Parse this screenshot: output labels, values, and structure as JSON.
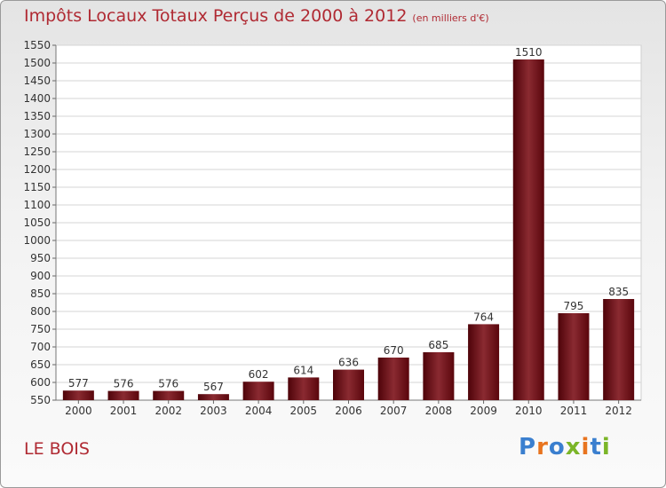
{
  "chart_data": {
    "type": "bar",
    "title": "Impôts Locaux Totaux Perçus de 2000 à 2012",
    "subtitle": "(en milliers d'€)",
    "categories": [
      "2000",
      "2001",
      "2002",
      "2003",
      "2004",
      "2005",
      "2006",
      "2007",
      "2008",
      "2009",
      "2010",
      "2011",
      "2012"
    ],
    "values": [
      577,
      576,
      576,
      567,
      602,
      614,
      636,
      670,
      685,
      764,
      1510,
      795,
      835
    ],
    "ylim": [
      550,
      1550
    ],
    "yticks": [
      550,
      600,
      650,
      700,
      750,
      800,
      850,
      900,
      950,
      1000,
      1050,
      1100,
      1150,
      1200,
      1250,
      1300,
      1350,
      1400,
      1450,
      1500,
      1550
    ],
    "xlabel": "",
    "ylabel": "",
    "grid": true,
    "bar_color": "#6e0f17"
  },
  "place_name": "LE BOIS",
  "logo": {
    "text": "Proxiti",
    "letters": [
      {
        "ch": "P",
        "color": "#3a7fcf"
      },
      {
        "ch": "r",
        "color": "#e8741f"
      },
      {
        "ch": "o",
        "color": "#3a7fcf"
      },
      {
        "ch": "x",
        "color": "#7bb528"
      },
      {
        "ch": "i",
        "color": "#e8741f"
      },
      {
        "ch": "t",
        "color": "#3a7fcf"
      },
      {
        "ch": "i",
        "color": "#7bb528"
      }
    ]
  }
}
